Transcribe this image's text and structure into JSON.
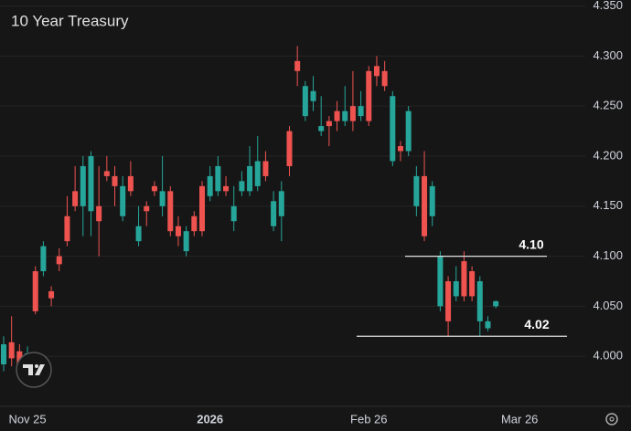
{
  "chart_data": {
    "type": "candlestick",
    "title": "10 Year Treasury",
    "categories": [
      null,
      null,
      null,
      "Nov 25",
      null,
      null,
      null,
      null,
      null,
      null,
      null,
      null,
      null,
      null,
      null,
      null,
      null,
      null,
      null,
      null,
      null,
      null,
      null,
      null,
      null,
      null,
      "2026",
      null,
      null,
      null,
      null,
      null,
      null,
      null,
      null,
      null,
      null,
      null,
      null,
      null,
      null,
      null,
      null,
      null,
      null,
      null,
      "Feb 26",
      null,
      null,
      null,
      null,
      null,
      null,
      null,
      null,
      null,
      null,
      null,
      null,
      null,
      null,
      null,
      null,
      null,
      null,
      "Mar 26"
    ],
    "open": [
      3.992,
      4.014,
      4.005,
      3.99,
      4.085,
      4.085,
      4.065,
      4.1,
      4.14,
      4.165,
      4.15,
      4.145,
      4.15,
      4.185,
      4.18,
      4.14,
      4.18,
      4.115,
      4.15,
      4.17,
      4.15,
      4.165,
      4.13,
      4.105,
      4.14,
      4.17,
      4.16,
      4.165,
      4.17,
      4.135,
      4.165,
      4.165,
      4.17,
      4.195,
      4.13,
      4.14,
      4.225,
      4.295,
      4.24,
      4.255,
      4.225,
      4.235,
      4.245,
      4.235,
      4.25,
      4.24,
      4.285,
      4.29,
      4.285,
      4.195,
      4.21,
      4.205,
      4.15,
      4.18,
      4.14,
      4.05,
      4.075,
      4.06,
      4.095,
      4.085,
      4.035,
      4.028,
      4.05,
      null,
      null,
      null
    ],
    "high": [
      4.02,
      4.04,
      4.012,
      4.01,
      4.09,
      4.115,
      4.07,
      4.108,
      4.16,
      4.19,
      4.2,
      4.205,
      4.19,
      4.2,
      4.19,
      4.18,
      4.195,
      4.15,
      4.155,
      4.175,
      4.2,
      4.17,
      4.14,
      4.13,
      4.145,
      4.175,
      4.19,
      4.2,
      4.18,
      4.17,
      4.185,
      4.21,
      4.22,
      4.205,
      4.165,
      4.175,
      4.23,
      4.31,
      4.275,
      4.28,
      4.26,
      4.24,
      4.255,
      4.27,
      4.285,
      4.265,
      4.29,
      4.3,
      4.295,
      4.265,
      4.215,
      4.25,
      4.19,
      4.205,
      4.175,
      4.105,
      4.08,
      4.09,
      4.105,
      4.09,
      4.08,
      4.04,
      4.056,
      null,
      null,
      null
    ],
    "low": [
      3.985,
      3.99,
      3.98,
      3.985,
      4.042,
      4.08,
      4.05,
      4.085,
      4.11,
      4.145,
      4.12,
      4.12,
      4.1,
      4.175,
      4.15,
      4.135,
      4.16,
      4.11,
      4.13,
      4.16,
      4.14,
      4.12,
      4.11,
      4.1,
      4.12,
      4.12,
      4.155,
      4.16,
      4.16,
      4.125,
      4.16,
      4.16,
      4.165,
      4.175,
      4.125,
      4.115,
      4.18,
      4.27,
      4.235,
      4.245,
      4.22,
      4.21,
      4.225,
      4.23,
      4.225,
      4.235,
      4.23,
      4.27,
      4.265,
      4.19,
      4.195,
      4.2,
      4.14,
      4.115,
      4.13,
      4.045,
      4.02,
      4.055,
      4.055,
      4.055,
      4.02,
      4.025,
      4.048,
      null,
      null,
      null
    ],
    "close": [
      4.012,
      3.998,
      3.988,
      4.003,
      4.045,
      4.11,
      4.058,
      4.092,
      4.115,
      4.15,
      4.19,
      4.2,
      4.135,
      4.18,
      4.17,
      4.17,
      4.165,
      4.13,
      4.145,
      4.165,
      4.165,
      4.125,
      4.12,
      4.125,
      4.125,
      4.125,
      4.18,
      4.19,
      4.165,
      4.15,
      4.175,
      4.19,
      4.195,
      4.18,
      4.155,
      4.165,
      4.19,
      4.285,
      4.27,
      4.265,
      4.23,
      4.23,
      4.235,
      4.245,
      4.235,
      4.25,
      4.235,
      4.28,
      4.27,
      4.26,
      4.205,
      4.245,
      4.18,
      4.12,
      4.17,
      4.1,
      4.035,
      4.075,
      4.06,
      4.06,
      4.075,
      4.035,
      4.055,
      null,
      null,
      null
    ],
    "up_color": "#26a69a",
    "down_color": "#ef5350",
    "ylim": [
      3.95,
      4.356
    ],
    "yticks": [
      {
        "value": 4.0,
        "label": "4.000"
      },
      {
        "value": 4.05,
        "label": "4.050"
      },
      {
        "value": 4.1,
        "label": "4.100"
      },
      {
        "value": 4.15,
        "label": "4.150"
      },
      {
        "value": 4.2,
        "label": "4.200"
      },
      {
        "value": 4.25,
        "label": "4.250"
      },
      {
        "value": 4.3,
        "label": "4.300"
      },
      {
        "value": 4.35,
        "label": "4.350"
      }
    ],
    "grid": true,
    "levels": [
      {
        "value": 4.1,
        "label": "4.10"
      },
      {
        "value": 4.02,
        "label": "4.02"
      }
    ]
  }
}
